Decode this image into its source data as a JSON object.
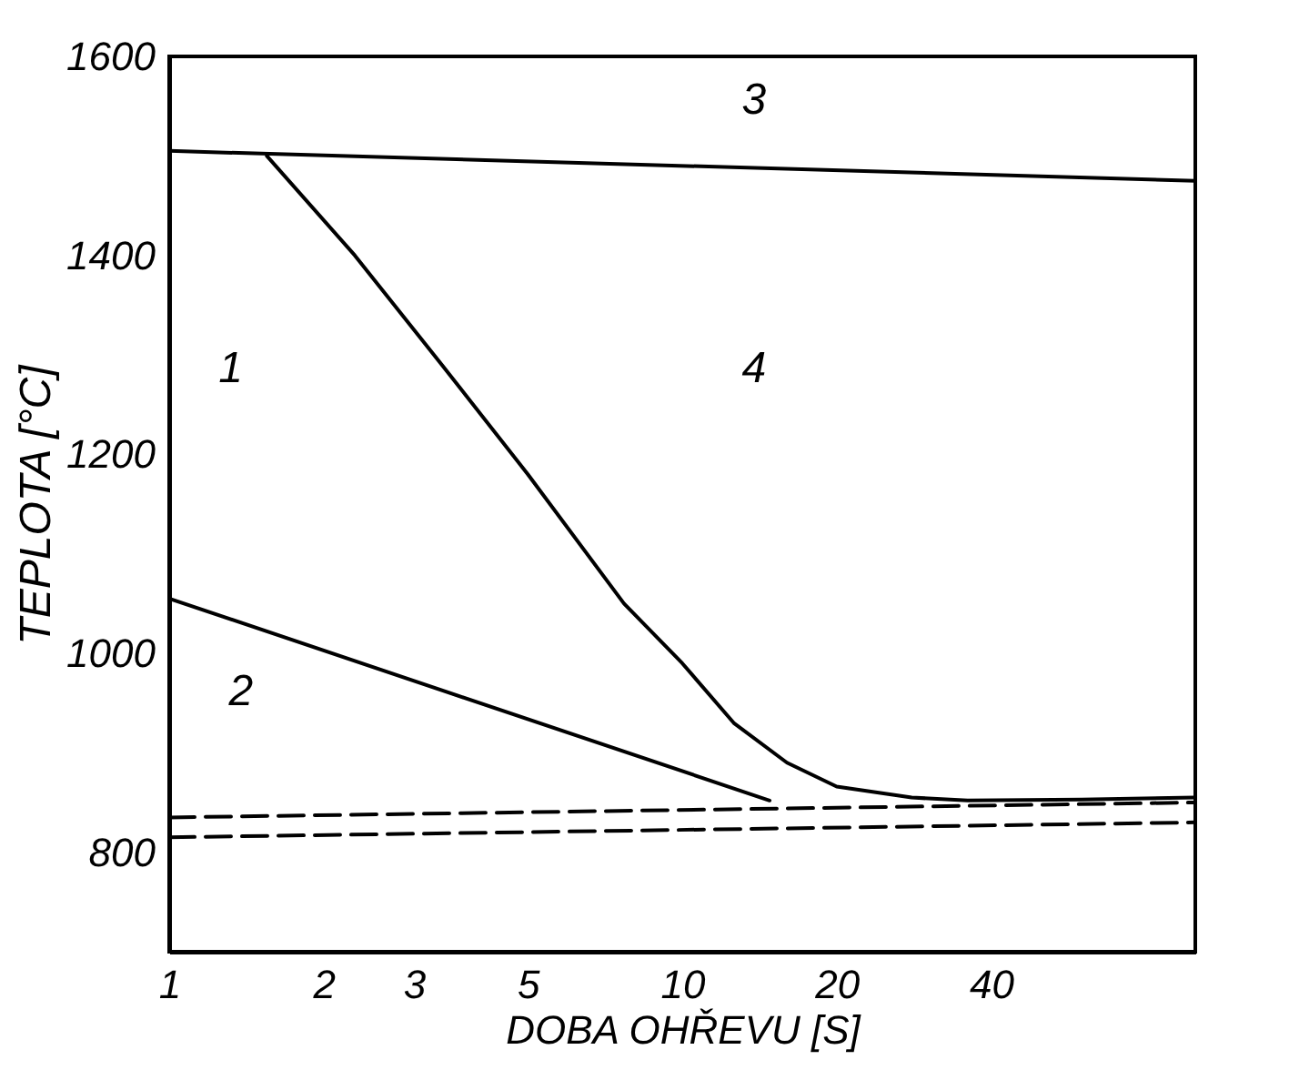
{
  "chart_data": {
    "type": "line",
    "xlabel": "DOBA OHŘEVU [S]",
    "ylabel": "TEPLOTA [°C]",
    "log": "x",
    "xlim": [
      1,
      100
    ],
    "xticks": [
      1,
      2,
      3,
      5,
      10,
      20,
      40
    ],
    "ylim": [
      700,
      1600
    ],
    "yticks": [
      800,
      1000,
      1200,
      1400,
      1600
    ],
    "grid": false,
    "marker": "none",
    "series": [
      {
        "color": "#000000",
        "line_style": "solid",
        "x": [
          1,
          100
        ],
        "values": [
          1505,
          1475
        ]
      },
      {
        "color": "#000000",
        "line_style": "solid",
        "x": [
          1.55,
          2.3,
          3.4,
          5,
          7.7,
          10,
          12.6,
          16,
          20,
          28,
          36,
          60,
          100
        ],
        "values": [
          1500,
          1400,
          1290,
          1180,
          1050,
          990,
          930,
          890,
          866,
          855,
          852,
          853,
          855
        ]
      },
      {
        "color": "#000000",
        "line_style": "solid",
        "x": [
          1,
          14.8
        ],
        "values": [
          1055,
          852
        ]
      },
      {
        "color": "#000000",
        "line_style": "dashed",
        "x": [
          1,
          100
        ],
        "values": [
          835,
          850
        ]
      },
      {
        "color": "#000000",
        "line_style": "dashed",
        "x": [
          1,
          100
        ],
        "values": [
          815,
          830
        ]
      }
    ],
    "annotations": [
      "1",
      "2",
      "3",
      "4"
    ]
  }
}
